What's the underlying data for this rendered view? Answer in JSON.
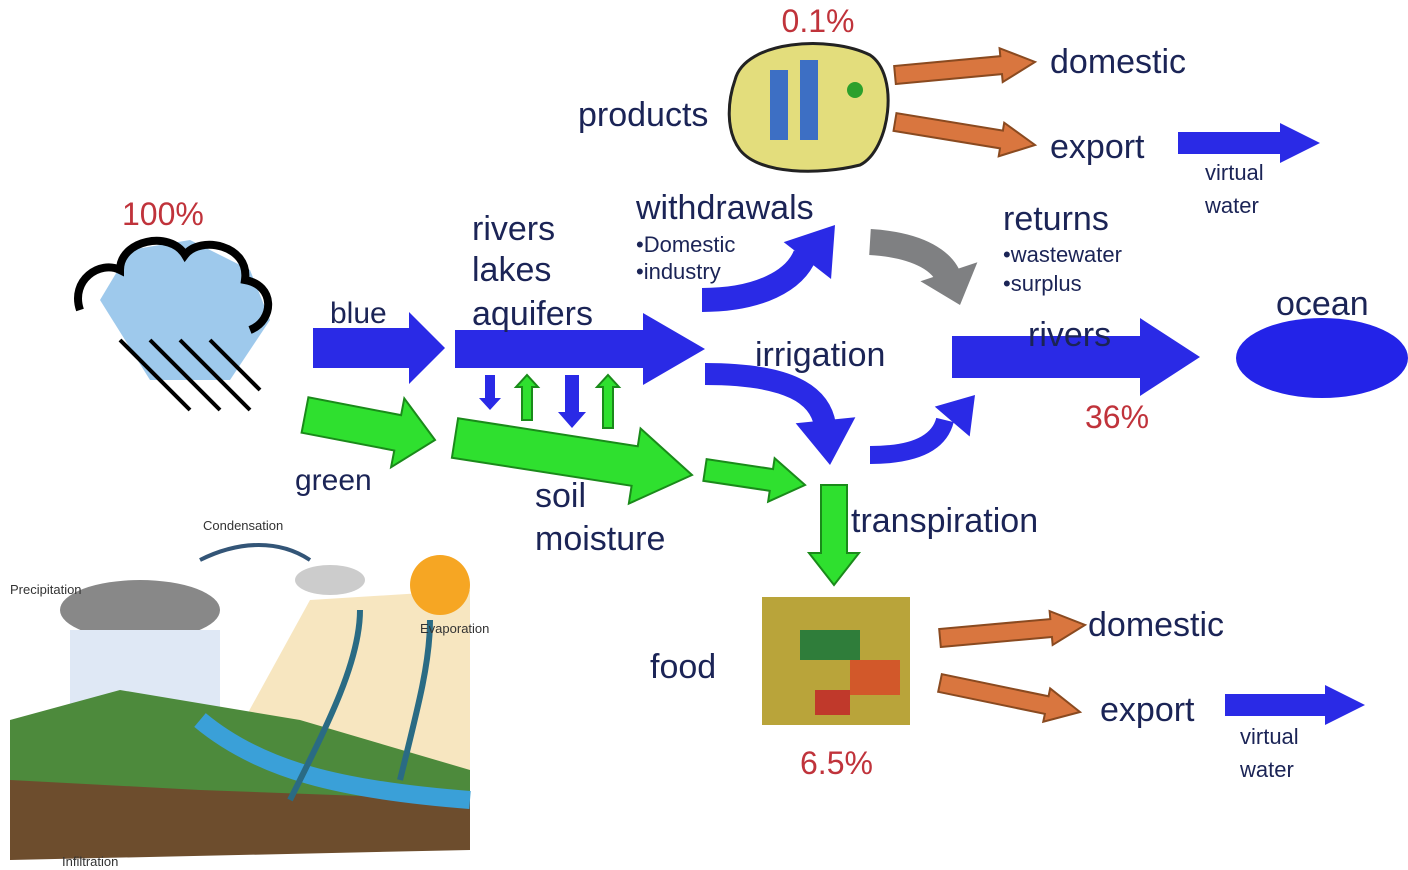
{
  "products": {
    "percent": "0.1%",
    "label": "products",
    "outputs": [
      "domestic",
      "export"
    ],
    "virtual": [
      "virtual",
      "water"
    ]
  },
  "precipitation": {
    "percent": "100%"
  },
  "blue": {
    "label": "blue",
    "stores": [
      "rivers",
      "lakes",
      "aquifers"
    ]
  },
  "green": {
    "label": "green",
    "store": [
      "soil",
      "moisture"
    ]
  },
  "withdrawals": {
    "label": "withdrawals",
    "items": [
      "•Domestic",
      "•industry"
    ]
  },
  "returns": {
    "label": "returns",
    "items": [
      "•wastewater",
      "•surplus"
    ]
  },
  "irrigation": "irrigation",
  "rivers": {
    "label": "rivers",
    "percent": "36%"
  },
  "ocean": "ocean",
  "transpiration": "transpiration",
  "food": {
    "label": "food",
    "percent": "6.5%",
    "outputs": [
      "domestic",
      "export"
    ],
    "virtual": [
      "virtual",
      "water"
    ]
  },
  "water_cycle": {
    "labels": [
      "Condensation",
      "Precipitation",
      "Evaporation",
      "Infiltration"
    ]
  }
}
